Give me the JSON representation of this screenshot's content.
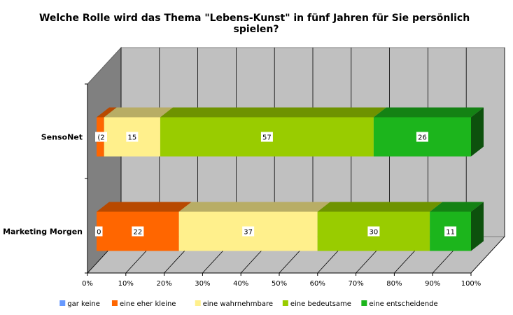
{
  "chart_data": {
    "type": "bar",
    "orientation": "horizontal",
    "stacked": "percent",
    "three_d": true,
    "title": "Welche Rolle wird das Thema \"Lebens-Kunst\" in fünf Jahren für Sie persönlich spielen?",
    "title_lines": [
      "Welche Rolle wird das Thema \"Lebens-Kunst\" in fünf Jahren für Sie persönlich",
      "spielen?"
    ],
    "categories": [
      "SensoNet",
      "Marketing Morgen"
    ],
    "series": [
      {
        "name": "gar keine",
        "color": "#6699ff",
        "values": [
          0,
          0
        ],
        "labels": [
          "",
          "0"
        ]
      },
      {
        "name": "eine eher kleine",
        "color": "#ff6600",
        "values": [
          2,
          22
        ],
        "labels": [
          "(2",
          "22"
        ]
      },
      {
        "name": "eine wahrnehmbare",
        "color": "#fff08c",
        "values": [
          15,
          37
        ],
        "labels": [
          "15",
          "37"
        ]
      },
      {
        "name": "eine bedeutsame",
        "color": "#99cc00",
        "values": [
          57,
          30
        ],
        "labels": [
          "57",
          "30"
        ]
      },
      {
        "name": "eine entscheidende",
        "color": "#1cb51c",
        "values": [
          26,
          11
        ],
        "labels": [
          "26",
          "11"
        ]
      }
    ],
    "xlim": [
      0,
      100
    ],
    "x_ticks": [
      "0%",
      "10%",
      "20%",
      "30%",
      "40%",
      "50%",
      "60%",
      "70%",
      "80%",
      "90%",
      "100%"
    ],
    "grid": true,
    "legend_position": "bottom"
  }
}
